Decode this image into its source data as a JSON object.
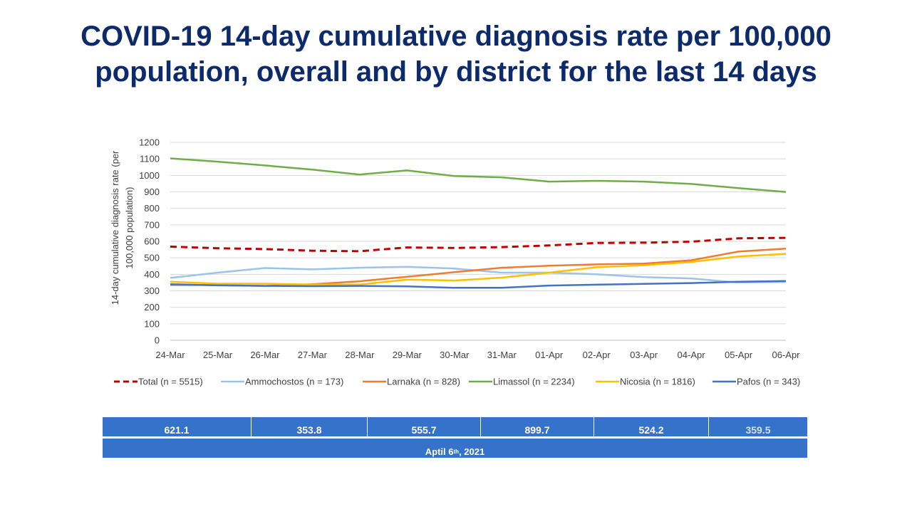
{
  "header": {
    "title_line1": "COVID-19 14-day cumulative diagnosis rate per 100,000",
    "title_line2": "population, overall and by district for the last 14 days"
  },
  "chart_data": {
    "type": "line",
    "ylabel_line1": "14-day cumulative diagnosis rate (per",
    "ylabel_line2": "100,000 population)",
    "xlabel": "",
    "ylim": [
      0,
      1200
    ],
    "yticks": [
      0,
      100,
      200,
      300,
      400,
      500,
      600,
      700,
      800,
      900,
      1000,
      1100,
      1200
    ],
    "grid": true,
    "legend_position": "bottom",
    "categories": [
      "24-Mar",
      "25-Mar",
      "26-Mar",
      "27-Mar",
      "28-Mar",
      "29-Mar",
      "30-Mar",
      "31-Mar",
      "01-Apr",
      "02-Apr",
      "03-Apr",
      "04-Apr",
      "05-Apr",
      "06-Apr"
    ],
    "series": [
      {
        "name": "Total (n = 5515)",
        "color": "#c00000",
        "dashed": true,
        "values": [
          568,
          558,
          553,
          543,
          540,
          563,
          560,
          565,
          575,
          590,
          592,
          598,
          618,
          621.1
        ]
      },
      {
        "name": "Ammochostos (n = 173)",
        "color": "#9dc3e6",
        "dashed": false,
        "values": [
          378,
          410,
          438,
          430,
          440,
          445,
          435,
          410,
          410,
          400,
          383,
          375,
          350,
          353.8
        ]
      },
      {
        "name": "Larnaka (n = 828)",
        "color": "#ed7d31",
        "dashed": false,
        "values": [
          335,
          335,
          330,
          340,
          358,
          385,
          413,
          440,
          452,
          460,
          465,
          485,
          538,
          555.7
        ]
      },
      {
        "name": "Limassol (n = 2234)",
        "color": "#70ad47",
        "dashed": false,
        "values": [
          1103,
          1083,
          1060,
          1035,
          1005,
          1030,
          996,
          988,
          962,
          967,
          962,
          948,
          923,
          899.7
        ]
      },
      {
        "name": "Nicosia (n = 1816)",
        "color": "#ffc000",
        "dashed": false,
        "values": [
          355,
          343,
          343,
          338,
          338,
          368,
          362,
          380,
          410,
          443,
          455,
          475,
          508,
          524.2
        ]
      },
      {
        "name": "Pafos (n = 343)",
        "color": "#4472c4",
        "dashed": false,
        "values": [
          340,
          333,
          330,
          328,
          330,
          327,
          318,
          318,
          332,
          337,
          342,
          347,
          355,
          359.5
        ]
      }
    ]
  },
  "table": {
    "values": [
      "621.1",
      "353.8",
      "555.7",
      "899.7",
      "524.2",
      "359.5"
    ],
    "date_main": "Aptil 6",
    "date_sup": "th",
    "date_tail": ", 2021"
  }
}
